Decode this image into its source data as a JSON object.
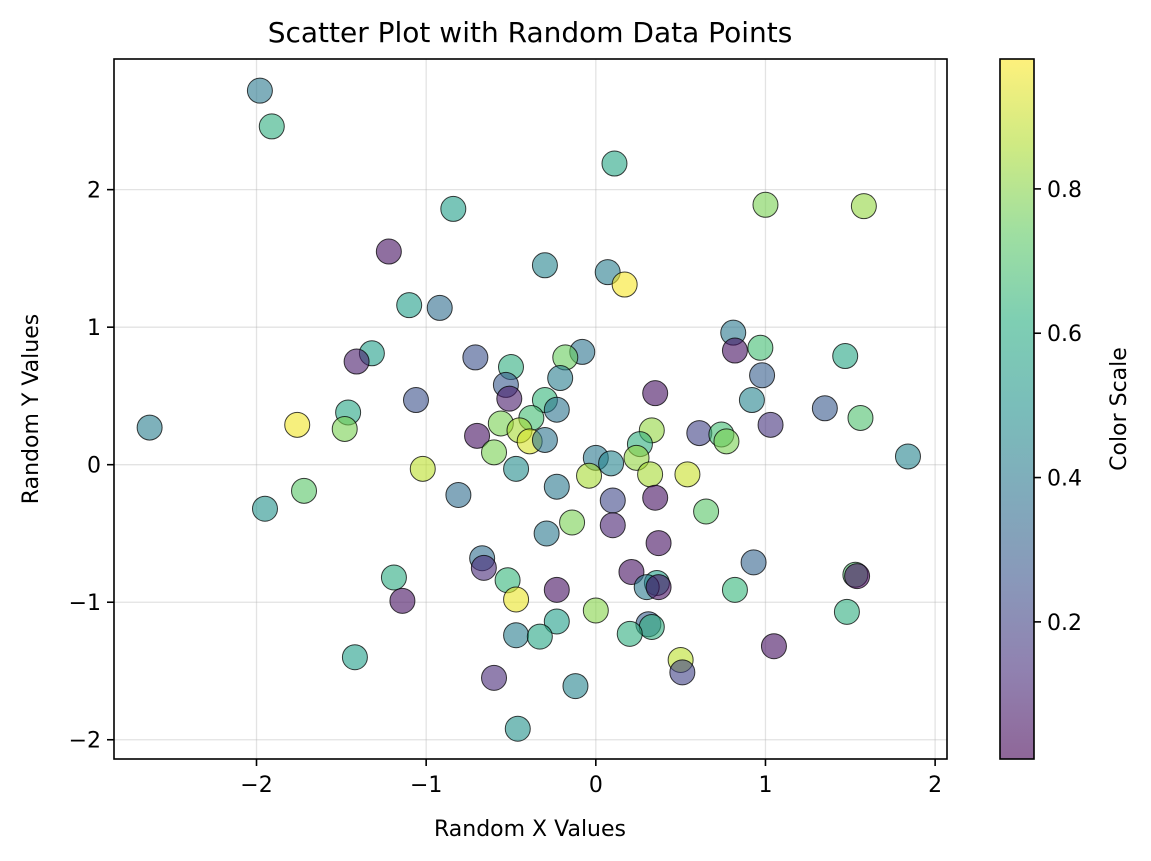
{
  "chart_data": {
    "type": "scatter",
    "title": "Scatter Plot with Random Data Points",
    "xlabel": "Random X Values",
    "ylabel": "Random Y Values",
    "xlim": [
      -2.84,
      2.07
    ],
    "ylim": [
      -2.14,
      2.95
    ],
    "xticks": [
      -2,
      -1,
      0,
      1,
      2
    ],
    "xtick_labels": [
      "−2",
      "−1",
      "0",
      "1",
      "2"
    ],
    "yticks": [
      -2,
      -1,
      0,
      1,
      2
    ],
    "ytick_labels": [
      "−2",
      "−1",
      "0",
      "1",
      "2"
    ],
    "grid": true,
    "colormap": "viridis",
    "point_alpha": 0.6,
    "colorbar": {
      "label": "Color Scale",
      "range": [
        0.01,
        0.98
      ],
      "ticks": [
        0.2,
        0.4,
        0.6,
        0.8
      ],
      "tick_labels": [
        "0.2",
        "0.4",
        "0.6",
        "0.8"
      ]
    },
    "points": [
      {
        "x": -1.98,
        "y": 2.72,
        "c": 0.4
      },
      {
        "x": -1.91,
        "y": 2.46,
        "c": 0.62
      },
      {
        "x": 0.11,
        "y": 2.19,
        "c": 0.58
      },
      {
        "x": -0.84,
        "y": 1.86,
        "c": 0.55
      },
      {
        "x": 1.0,
        "y": 1.89,
        "c": 0.78
      },
      {
        "x": 1.58,
        "y": 1.88,
        "c": 0.82
      },
      {
        "x": -1.22,
        "y": 1.55,
        "c": 0.05
      },
      {
        "x": -0.3,
        "y": 1.45,
        "c": 0.45
      },
      {
        "x": 0.07,
        "y": 1.4,
        "c": 0.42
      },
      {
        "x": 0.17,
        "y": 1.31,
        "c": 0.97
      },
      {
        "x": -1.1,
        "y": 1.16,
        "c": 0.55
      },
      {
        "x": -0.92,
        "y": 1.14,
        "c": 0.35
      },
      {
        "x": 0.81,
        "y": 0.96,
        "c": 0.4
      },
      {
        "x": 0.97,
        "y": 0.85,
        "c": 0.68
      },
      {
        "x": 0.82,
        "y": 0.83,
        "c": 0.05
      },
      {
        "x": 1.47,
        "y": 0.79,
        "c": 0.58
      },
      {
        "x": -1.32,
        "y": 0.81,
        "c": 0.55
      },
      {
        "x": -1.41,
        "y": 0.75,
        "c": 0.08
      },
      {
        "x": -0.71,
        "y": 0.78,
        "c": 0.25
      },
      {
        "x": -0.08,
        "y": 0.82,
        "c": 0.38
      },
      {
        "x": -0.18,
        "y": 0.78,
        "c": 0.75
      },
      {
        "x": -0.5,
        "y": 0.71,
        "c": 0.62
      },
      {
        "x": -0.21,
        "y": 0.63,
        "c": 0.42
      },
      {
        "x": 0.98,
        "y": 0.65,
        "c": 0.3
      },
      {
        "x": -0.53,
        "y": 0.58,
        "c": 0.28
      },
      {
        "x": 0.35,
        "y": 0.52,
        "c": 0.05
      },
      {
        "x": 0.92,
        "y": 0.47,
        "c": 0.45
      },
      {
        "x": -1.06,
        "y": 0.47,
        "c": 0.25
      },
      {
        "x": -0.51,
        "y": 0.48,
        "c": 0.08
      },
      {
        "x": -0.3,
        "y": 0.47,
        "c": 0.65
      },
      {
        "x": -0.23,
        "y": 0.4,
        "c": 0.38
      },
      {
        "x": -1.46,
        "y": 0.38,
        "c": 0.58
      },
      {
        "x": 1.35,
        "y": 0.41,
        "c": 0.28
      },
      {
        "x": 1.56,
        "y": 0.34,
        "c": 0.7
      },
      {
        "x": -0.38,
        "y": 0.34,
        "c": 0.68
      },
      {
        "x": -0.56,
        "y": 0.3,
        "c": 0.78
      },
      {
        "x": 1.03,
        "y": 0.29,
        "c": 0.15
      },
      {
        "x": -1.76,
        "y": 0.29,
        "c": 0.96
      },
      {
        "x": -2.63,
        "y": 0.27,
        "c": 0.42
      },
      {
        "x": -1.48,
        "y": 0.26,
        "c": 0.78
      },
      {
        "x": -0.45,
        "y": 0.25,
        "c": 0.85
      },
      {
        "x": 0.33,
        "y": 0.25,
        "c": 0.82
      },
      {
        "x": 0.61,
        "y": 0.23,
        "c": 0.2
      },
      {
        "x": 0.74,
        "y": 0.22,
        "c": 0.68
      },
      {
        "x": -0.7,
        "y": 0.21,
        "c": 0.05
      },
      {
        "x": -0.39,
        "y": 0.17,
        "c": 0.92
      },
      {
        "x": 0.77,
        "y": 0.17,
        "c": 0.78
      },
      {
        "x": -0.3,
        "y": 0.18,
        "c": 0.38
      },
      {
        "x": 0.26,
        "y": 0.15,
        "c": 0.62
      },
      {
        "x": -0.6,
        "y": 0.09,
        "c": 0.78
      },
      {
        "x": 1.84,
        "y": 0.06,
        "c": 0.45
      },
      {
        "x": 0.0,
        "y": 0.05,
        "c": 0.4
      },
      {
        "x": 0.24,
        "y": 0.05,
        "c": 0.82
      },
      {
        "x": 0.09,
        "y": 0.01,
        "c": 0.45
      },
      {
        "x": -1.02,
        "y": -0.03,
        "c": 0.88
      },
      {
        "x": -0.47,
        "y": -0.03,
        "c": 0.48
      },
      {
        "x": 0.32,
        "y": -0.07,
        "c": 0.85
      },
      {
        "x": 0.54,
        "y": -0.07,
        "c": 0.9
      },
      {
        "x": -0.04,
        "y": -0.08,
        "c": 0.85
      },
      {
        "x": -1.72,
        "y": -0.19,
        "c": 0.72
      },
      {
        "x": -0.81,
        "y": -0.22,
        "c": 0.35
      },
      {
        "x": -0.23,
        "y": -0.16,
        "c": 0.4
      },
      {
        "x": 0.35,
        "y": -0.24,
        "c": 0.05
      },
      {
        "x": 0.1,
        "y": -0.26,
        "c": 0.22
      },
      {
        "x": -1.95,
        "y": -0.32,
        "c": 0.5
      },
      {
        "x": 0.65,
        "y": -0.34,
        "c": 0.72
      },
      {
        "x": -0.14,
        "y": -0.42,
        "c": 0.78
      },
      {
        "x": 0.1,
        "y": -0.44,
        "c": 0.1
      },
      {
        "x": -0.29,
        "y": -0.5,
        "c": 0.4
      },
      {
        "x": 0.37,
        "y": -0.57,
        "c": 0.05
      },
      {
        "x": -0.67,
        "y": -0.68,
        "c": 0.35
      },
      {
        "x": 0.93,
        "y": -0.71,
        "c": 0.32
      },
      {
        "x": -0.66,
        "y": -0.75,
        "c": 0.12
      },
      {
        "x": 0.21,
        "y": -0.78,
        "c": 0.05
      },
      {
        "x": 1.53,
        "y": -0.8,
        "c": 0.7
      },
      {
        "x": 1.54,
        "y": -0.81,
        "c": 0.03
      },
      {
        "x": -1.19,
        "y": -0.82,
        "c": 0.6
      },
      {
        "x": -0.52,
        "y": -0.84,
        "c": 0.65
      },
      {
        "x": 0.36,
        "y": -0.86,
        "c": 0.55
      },
      {
        "x": 0.3,
        "y": -0.89,
        "c": 0.4
      },
      {
        "x": 0.37,
        "y": -0.89,
        "c": 0.05
      },
      {
        "x": -0.23,
        "y": -0.91,
        "c": 0.05
      },
      {
        "x": 0.82,
        "y": -0.91,
        "c": 0.65
      },
      {
        "x": -1.14,
        "y": -0.99,
        "c": 0.05
      },
      {
        "x": -0.47,
        "y": -0.98,
        "c": 0.95
      },
      {
        "x": 0.0,
        "y": -1.06,
        "c": 0.8
      },
      {
        "x": 1.48,
        "y": -1.07,
        "c": 0.62
      },
      {
        "x": 0.31,
        "y": -1.16,
        "c": 0.3
      },
      {
        "x": 0.33,
        "y": -1.18,
        "c": 0.62
      },
      {
        "x": -0.23,
        "y": -1.14,
        "c": 0.55
      },
      {
        "x": 0.2,
        "y": -1.23,
        "c": 0.62
      },
      {
        "x": -0.47,
        "y": -1.24,
        "c": 0.42
      },
      {
        "x": -0.33,
        "y": -1.25,
        "c": 0.58
      },
      {
        "x": 1.05,
        "y": -1.32,
        "c": 0.05
      },
      {
        "x": -1.42,
        "y": -1.4,
        "c": 0.55
      },
      {
        "x": 0.5,
        "y": -1.42,
        "c": 0.88
      },
      {
        "x": 0.51,
        "y": -1.51,
        "c": 0.2
      },
      {
        "x": -0.6,
        "y": -1.55,
        "c": 0.12
      },
      {
        "x": -0.12,
        "y": -1.61,
        "c": 0.45
      },
      {
        "x": -0.46,
        "y": -1.92,
        "c": 0.5
      }
    ]
  }
}
